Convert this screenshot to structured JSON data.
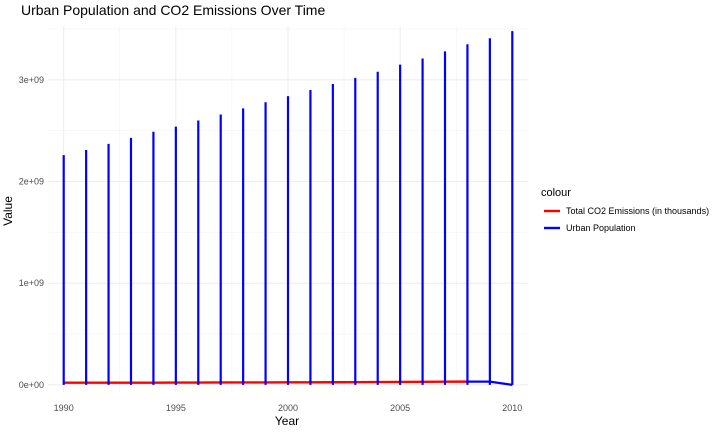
{
  "chart_data": {
    "type": "line",
    "title": "Urban Population and CO2 Emissions Over Time",
    "xlabel": "Year",
    "ylabel": "Value",
    "xlim": [
      1989.3,
      2010.7
    ],
    "ylim": [
      -70000000,
      3530000000
    ],
    "x_ticks": [
      1990,
      1995,
      2000,
      2005,
      2010
    ],
    "x_tick_labels": [
      "1990",
      "1995",
      "2000",
      "2005",
      "2010"
    ],
    "y_ticks": [
      0,
      1000000000,
      2000000000,
      3000000000
    ],
    "y_tick_labels": [
      "0e+00",
      "1e+09",
      "2e+09",
      "3e+09"
    ],
    "legend": {
      "title": "colour",
      "position": "right"
    },
    "grid": true,
    "series": [
      {
        "name": "Total CO2 Emissions (in thousands)",
        "color": "#ff0000",
        "x": [
          1990,
          1991,
          1992,
          1993,
          1994,
          1995,
          1996,
          1997,
          1998,
          1999,
          2000,
          2001,
          2002,
          2003,
          2004,
          2005,
          2006,
          2007,
          2008
        ],
        "values": [
          22000000,
          22000000,
          22000000,
          22000000,
          22000000,
          23000000,
          23000000,
          24000000,
          24000000,
          24000000,
          25000000,
          25000000,
          26000000,
          27000000,
          28000000,
          29000000,
          30000000,
          31000000,
          32000000
        ]
      },
      {
        "name": "Urban Population",
        "color": "#0000ff",
        "x": [
          1990,
          1991,
          1992,
          1993,
          1994,
          1995,
          1996,
          1997,
          1998,
          1999,
          2000,
          2001,
          2002,
          2003,
          2004,
          2005,
          2006,
          2007,
          2008,
          2009,
          2010
        ],
        "values": [
          2260000000,
          2310000000,
          2370000000,
          2430000000,
          2490000000,
          2540000000,
          2600000000,
          2660000000,
          2720000000,
          2780000000,
          2840000000,
          2900000000,
          2960000000,
          3020000000,
          3080000000,
          3150000000,
          3210000000,
          3280000000,
          3350000000,
          3410000000,
          3480000000
        ]
      }
    ]
  }
}
